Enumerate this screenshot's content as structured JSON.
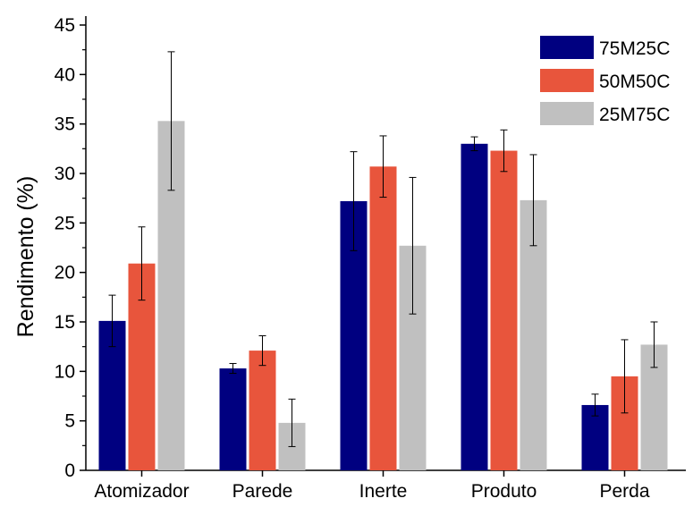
{
  "chart_data": {
    "type": "bar",
    "title": "",
    "xlabel": "",
    "ylabel": "Rendimento (%)",
    "ylim": [
      0,
      45
    ],
    "yticks": [
      0,
      5,
      10,
      15,
      20,
      25,
      30,
      35,
      40,
      45
    ],
    "ytick_labels": [
      "0",
      "5",
      "10",
      "15",
      "20",
      "25",
      "30",
      "35",
      "40",
      "45"
    ],
    "grid": false,
    "legend_position": "top-right",
    "categories": [
      "Atomizador",
      "Parede",
      "Inerte",
      "Produto",
      "Perda"
    ],
    "series": [
      {
        "name": "75M25C",
        "color": "#000080",
        "values": [
          15.1,
          10.3,
          27.2,
          33.0,
          6.6
        ],
        "errors": [
          2.6,
          0.5,
          5.0,
          0.7,
          1.1
        ]
      },
      {
        "name": "50M50C",
        "color": "#e8553c",
        "values": [
          20.9,
          12.1,
          30.7,
          32.3,
          9.5
        ],
        "errors": [
          3.7,
          1.5,
          3.1,
          2.1,
          3.7
        ]
      },
      {
        "name": "25M75C",
        "color": "#c0c0c0",
        "values": [
          35.3,
          4.8,
          22.7,
          27.3,
          12.7
        ],
        "errors": [
          7.0,
          2.4,
          6.9,
          4.6,
          2.3
        ]
      }
    ]
  }
}
